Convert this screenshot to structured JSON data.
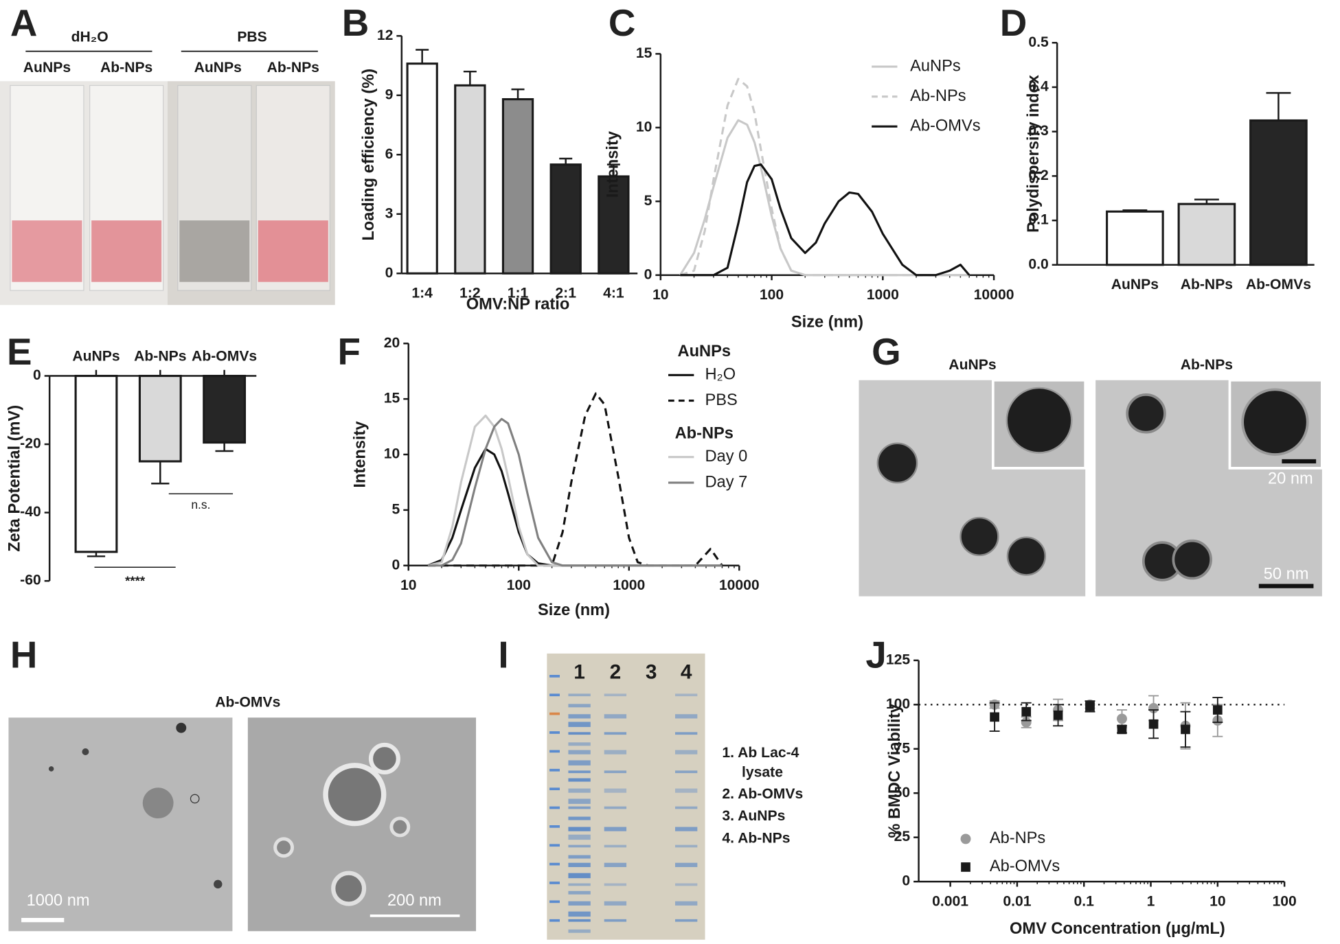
{
  "letters": [
    "A",
    "B",
    "C",
    "D",
    "E",
    "F",
    "G",
    "H",
    "I",
    "J"
  ],
  "panel_a": {
    "groups": [
      "dH₂O",
      "PBS"
    ],
    "labels": [
      "AuNPs",
      "Ab-NPs",
      "AuNPs",
      "Ab-NPs"
    ]
  },
  "panel_g": {
    "titles": [
      "AuNPs",
      "Ab-NPs"
    ],
    "scale_bars": [
      "20 nm",
      "50 nm"
    ]
  },
  "panel_h": {
    "title": "Ab-OMVs",
    "scale_bars": [
      "1000 nm",
      "200 nm"
    ]
  },
  "panel_i": {
    "lanes": [
      "1",
      "2",
      "3",
      "4"
    ],
    "legend": [
      "1. Ab Lac-4",
      "lysate",
      "2. Ab-OMVs",
      "3. AuNPs",
      "4. Ab-NPs"
    ]
  },
  "chart_data": [
    {
      "type": "bar",
      "ylabel": "Loading efficiency (%)",
      "xlabel": "OMV:NP ratio",
      "categories": [
        "1:4",
        "1:2",
        "1:1",
        "2:1",
        "4:1"
      ],
      "values": [
        10.6,
        9.5,
        8.8,
        5.5,
        4.9
      ],
      "errors": [
        0.7,
        0.7,
        0.5,
        0.3,
        0.6
      ],
      "colors": [
        "#ffffff",
        "#d9d9d9",
        "#8c8c8c",
        "#262626",
        "#262626"
      ],
      "ylim": [
        0,
        12
      ],
      "yticks": [
        0,
        3,
        6,
        9,
        12
      ]
    },
    {
      "type": "line",
      "xlabel": "Size (nm)",
      "ylabel": "Intensity",
      "xscale": "log",
      "legend": "top-right",
      "x": [
        15,
        20,
        25,
        30,
        40,
        50,
        60,
        70,
        80,
        100,
        120,
        150,
        200,
        250,
        300,
        400,
        500,
        600,
        800,
        1000,
        1500,
        2000,
        3000,
        4000,
        5000,
        6000
      ],
      "series": [
        {
          "name": "AuNPs",
          "color": "#c8c8c8",
          "dash": false,
          "values": [
            0,
            1.5,
            3.8,
            6,
            9.3,
            10.5,
            10.2,
            9,
            7.3,
            4,
            1.8,
            0.3,
            0,
            0,
            0,
            0,
            0,
            0,
            0,
            0,
            0,
            0,
            0,
            0,
            0,
            0
          ]
        },
        {
          "name": "Ab-NPs",
          "color": "#c8c8c8",
          "dash": true,
          "values": [
            0,
            0.3,
            3,
            6.5,
            11.5,
            13.3,
            12.8,
            11,
            8.5,
            4.5,
            1.8,
            0.3,
            0,
            0,
            0,
            0,
            0,
            0,
            0,
            0,
            0,
            0,
            0,
            0,
            0,
            0
          ]
        },
        {
          "name": "Ab-OMVs",
          "color": "#111111",
          "dash": false,
          "values": [
            0,
            0,
            0,
            0,
            0.5,
            3.5,
            6.3,
            7.4,
            7.5,
            6.5,
            4.5,
            2.5,
            1.5,
            2.2,
            3.5,
            5,
            5.6,
            5.5,
            4.3,
            2.8,
            0.7,
            0,
            0,
            0.3,
            0.7,
            0
          ]
        }
      ],
      "xlim": [
        10,
        10000
      ],
      "xticks": [
        10,
        100,
        1000,
        10000
      ],
      "ylim": [
        0,
        15
      ],
      "yticks": [
        0,
        5,
        10,
        15
      ]
    },
    {
      "type": "bar",
      "ylabel": "Polydispersity index",
      "categories": [
        "AuNPs",
        "Ab-NPs",
        "Ab-OMVs"
      ],
      "values": [
        0.12,
        0.137,
        0.325
      ],
      "errors": [
        0.003,
        0.01,
        0.062
      ],
      "colors": [
        "#ffffff",
        "#d9d9d9",
        "#262626"
      ],
      "ylim": [
        0,
        0.5
      ],
      "yticks": [
        {
          "value": 0,
          "label": "0.0"
        },
        0.1,
        0.2,
        0.3,
        0.4,
        0.5
      ]
    },
    {
      "type": "bar",
      "ylabel": "Zeta Potential (mV)",
      "categories": [
        "AuNPs",
        "Ab-NPs",
        "Ab-OMVs"
      ],
      "values": [
        -51.5,
        -25,
        -19.5
      ],
      "errors": [
        1.3,
        6.5,
        2.5
      ],
      "colors": [
        "#ffffff",
        "#d9d9d9",
        "#262626"
      ],
      "ylim": [
        -60,
        0
      ],
      "yticks": [
        -60,
        -40,
        -20,
        0
      ],
      "annotations": [
        "****",
        "n.s."
      ]
    },
    {
      "type": "line",
      "xlabel": "Size (nm)",
      "ylabel": "Intensity",
      "xscale": "log",
      "legend": "top-right",
      "legend_groups": [
        "AuNPs",
        "Ab-NPs"
      ],
      "x": [
        15,
        20,
        25,
        30,
        40,
        50,
        60,
        70,
        80,
        100,
        120,
        150,
        200,
        250,
        300,
        400,
        500,
        600,
        800,
        1000,
        1200,
        1500,
        3000,
        4000,
        5500,
        7000
      ],
      "series": [
        {
          "name": "H₂O",
          "color": "#111111",
          "dash": false,
          "values": [
            0,
            0.5,
            2.5,
            5,
            8.8,
            10.5,
            10,
            8.5,
            6.5,
            3,
            1,
            0.2,
            0,
            0,
            0,
            0,
            0,
            0,
            0,
            0,
            0,
            0,
            0,
            0,
            0,
            0
          ]
        },
        {
          "name": "PBS",
          "color": "#111111",
          "dash": true,
          "values": [
            0,
            0,
            0,
            0,
            0,
            0,
            0,
            0,
            0,
            0,
            0,
            0,
            0,
            3,
            7.5,
            13.5,
            15.5,
            14.5,
            8,
            2.5,
            0.3,
            0,
            0,
            0,
            1.5,
            0
          ]
        },
        {
          "name": "Day 0",
          "color": "#c8c8c8",
          "dash": false,
          "values": [
            0,
            0.3,
            3.5,
            7.5,
            12.5,
            13.5,
            12.5,
            10.5,
            8,
            3.5,
            1,
            0,
            0,
            0,
            0,
            0,
            0,
            0,
            0,
            0,
            0,
            0,
            0,
            0,
            0,
            0
          ]
        },
        {
          "name": "Day 7",
          "color": "#808080",
          "dash": false,
          "values": [
            0,
            0,
            0.5,
            2,
            7,
            10.5,
            12.5,
            13.2,
            12.8,
            10,
            6.5,
            2.5,
            0.3,
            0,
            0,
            0,
            0,
            0,
            0,
            0,
            0,
            0,
            0,
            0,
            0,
            0
          ]
        }
      ],
      "xlim": [
        10,
        10000
      ],
      "xticks": [
        10,
        100,
        1000,
        10000
      ],
      "ylim": [
        0,
        20
      ],
      "yticks": [
        0,
        5,
        10,
        15,
        20
      ]
    },
    {
      "type": "scatter",
      "xlabel": "OMV Concentration (μg/mL)",
      "ylabel": "% BMDC Viability",
      "xscale": "log",
      "legend": "bottom-left",
      "x": [
        0.0046,
        0.0137,
        0.041,
        0.123,
        0.37,
        1.1,
        3.3,
        10
      ],
      "series": [
        {
          "name": "Ab-NPs",
          "color": "#9a9a9a",
          "marker": "circle",
          "values": [
            100,
            90,
            97,
            100,
            92,
            98,
            88,
            91
          ],
          "errors": [
            2,
            3,
            6,
            2,
            5,
            7,
            13,
            9
          ]
        },
        {
          "name": "Ab-OMVs",
          "color": "#1a1a1a",
          "marker": "square",
          "values": [
            93,
            96,
            94,
            99,
            86,
            89,
            86,
            97
          ],
          "errors": [
            8,
            5,
            6,
            3,
            2,
            8,
            10,
            7
          ]
        }
      ],
      "reference_line": 100,
      "xlim": [
        0.001,
        100
      ],
      "xticks": [
        0.001,
        0.01,
        0.1,
        1,
        10,
        100
      ],
      "ylim": [
        0,
        125
      ],
      "yticks": [
        0,
        25,
        50,
        75,
        100,
        125
      ]
    }
  ]
}
